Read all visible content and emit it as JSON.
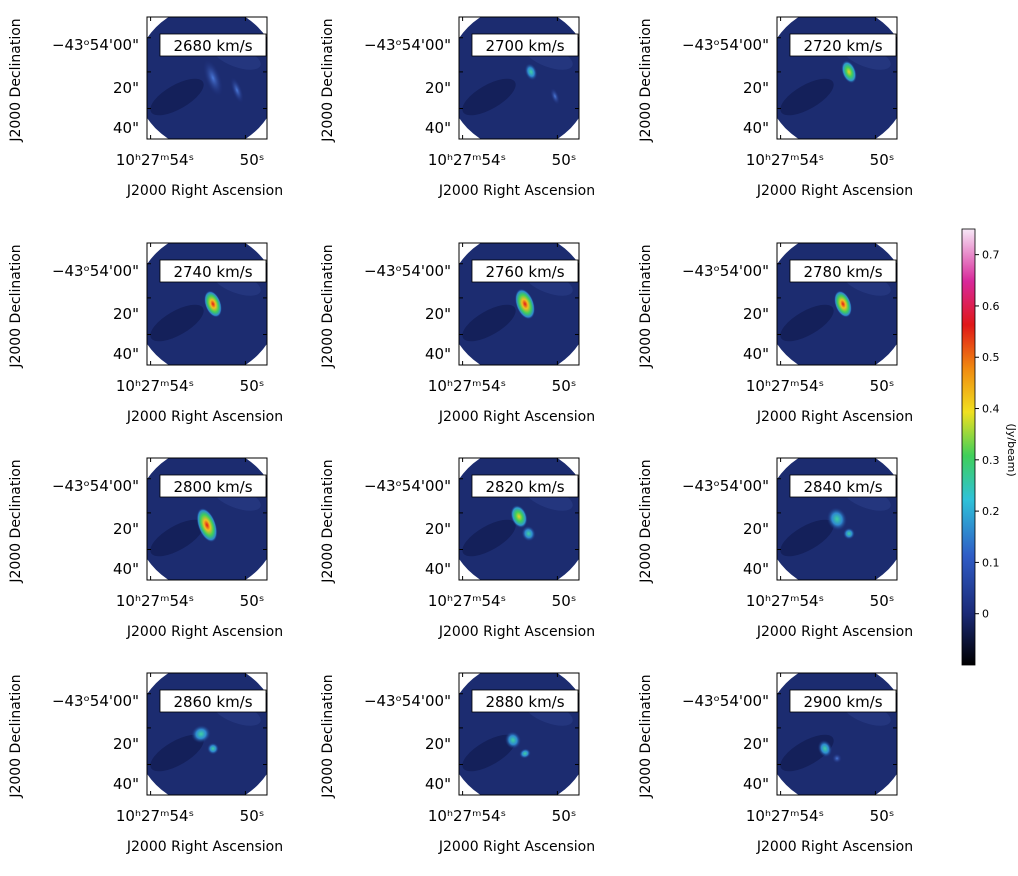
{
  "panels": [
    {
      "label": "2680 km/s"
    },
    {
      "label": "2700 km/s"
    },
    {
      "label": "2720 km/s"
    },
    {
      "label": "2740 km/s"
    },
    {
      "label": "2760 km/s"
    },
    {
      "label": "2780 km/s"
    },
    {
      "label": "2800 km/s"
    },
    {
      "label": "2820 km/s"
    },
    {
      "label": "2840 km/s"
    },
    {
      "label": "2860 km/s"
    },
    {
      "label": "2880 km/s"
    },
    {
      "label": "2900 km/s"
    }
  ],
  "y_axis_label": "J2000 Declination",
  "x_axis_label": "J2000 Right Ascension",
  "y_tick_labels": [
    "−43ᵒ54'00\"",
    "20\"",
    "40\""
  ],
  "x_tick_labels": [
    "10ʰ27ᵐ54ˢ",
    "50ˢ"
  ],
  "colorbar": {
    "label": "(Jy/beam)",
    "lim": [
      -0.1,
      0.75
    ],
    "ticks": [
      0,
      0.1,
      0.2,
      0.3,
      0.4,
      0.5,
      0.6,
      0.7
    ]
  }
}
